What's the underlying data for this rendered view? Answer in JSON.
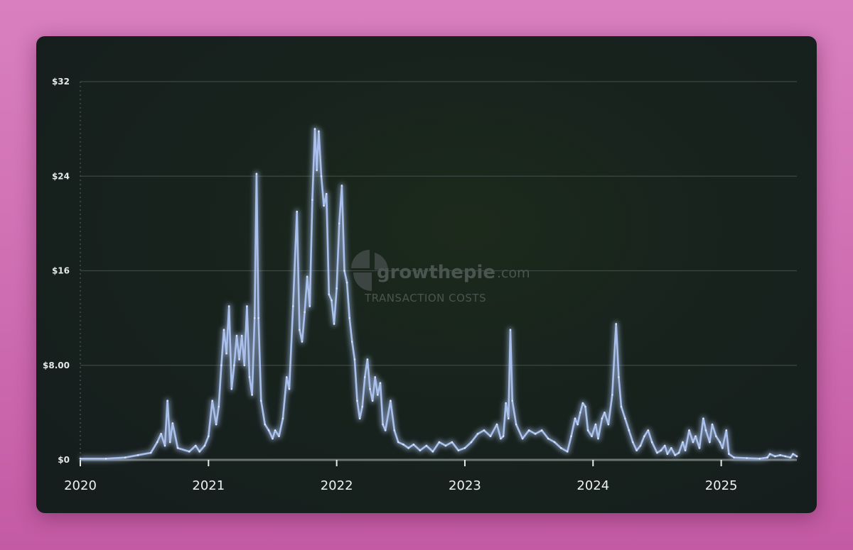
{
  "watermark": {
    "brand": "growthepie",
    "domain_suffix": ".com",
    "subtitle": "TRANSACTION COSTS"
  },
  "colors": {
    "line": "#a9c0ec",
    "grid": "#3e4643",
    "card_background": "#182220",
    "page_background": "#d27abb"
  },
  "chart_data": {
    "type": "line",
    "title": "",
    "xlabel": "",
    "ylabel": "",
    "ylim": [
      0,
      32
    ],
    "yticks": [
      {
        "value": 0,
        "label": "$0"
      },
      {
        "value": 8,
        "label": "$8.00"
      },
      {
        "value": 16,
        "label": "$16"
      },
      {
        "value": 24,
        "label": "$24"
      },
      {
        "value": 32,
        "label": "$32"
      }
    ],
    "xlim": [
      2020.0,
      2025.59
    ],
    "xticks": [
      {
        "value": 2020,
        "label": "2020"
      },
      {
        "value": 2021,
        "label": "2021"
      },
      {
        "value": 2022,
        "label": "2022"
      },
      {
        "value": 2023,
        "label": "2023"
      },
      {
        "value": 2024,
        "label": "2024"
      },
      {
        "value": 2025,
        "label": "2025"
      }
    ],
    "grid": true,
    "legend": "none",
    "series": [
      {
        "values": [
          [
            2020.0,
            0.1
          ],
          [
            2020.2,
            0.1
          ],
          [
            2020.35,
            0.2
          ],
          [
            2020.45,
            0.4
          ],
          [
            2020.55,
            0.6
          ],
          [
            2020.6,
            1.5
          ],
          [
            2020.63,
            2.2
          ],
          [
            2020.66,
            1.2
          ],
          [
            2020.68,
            5.0
          ],
          [
            2020.7,
            1.5
          ],
          [
            2020.72,
            3.1
          ],
          [
            2020.76,
            1.0
          ],
          [
            2020.85,
            0.7
          ],
          [
            2020.9,
            1.2
          ],
          [
            2020.93,
            0.7
          ],
          [
            2020.97,
            1.2
          ],
          [
            2021.0,
            2.0
          ],
          [
            2021.03,
            5.0
          ],
          [
            2021.06,
            3.0
          ],
          [
            2021.08,
            4.5
          ],
          [
            2021.1,
            8.0
          ],
          [
            2021.12,
            11.0
          ],
          [
            2021.14,
            9.0
          ],
          [
            2021.16,
            13.0
          ],
          [
            2021.18,
            6.0
          ],
          [
            2021.2,
            8.0
          ],
          [
            2021.22,
            10.5
          ],
          [
            2021.24,
            8.5
          ],
          [
            2021.26,
            10.5
          ],
          [
            2021.28,
            8.0
          ],
          [
            2021.3,
            13.0
          ],
          [
            2021.32,
            7.0
          ],
          [
            2021.34,
            5.5
          ],
          [
            2021.36,
            12.0
          ],
          [
            2021.375,
            24.2
          ],
          [
            2021.39,
            12.0
          ],
          [
            2021.41,
            5.0
          ],
          [
            2021.44,
            3.0
          ],
          [
            2021.47,
            2.5
          ],
          [
            2021.5,
            1.8
          ],
          [
            2021.52,
            2.5
          ],
          [
            2021.55,
            2.0
          ],
          [
            2021.58,
            3.5
          ],
          [
            2021.61,
            7.0
          ],
          [
            2021.63,
            6.0
          ],
          [
            2021.66,
            13.0
          ],
          [
            2021.69,
            21.0
          ],
          [
            2021.71,
            11.0
          ],
          [
            2021.73,
            10.0
          ],
          [
            2021.75,
            12.5
          ],
          [
            2021.77,
            15.5
          ],
          [
            2021.79,
            13.0
          ],
          [
            2021.81,
            22.0
          ],
          [
            2021.83,
            28.0
          ],
          [
            2021.845,
            24.5
          ],
          [
            2021.86,
            27.8
          ],
          [
            2021.88,
            24.0
          ],
          [
            2021.9,
            21.5
          ],
          [
            2021.92,
            22.5
          ],
          [
            2021.94,
            14.0
          ],
          [
            2021.96,
            13.5
          ],
          [
            2021.98,
            11.5
          ],
          [
            2022.0,
            14.5
          ],
          [
            2022.02,
            20.0
          ],
          [
            2022.04,
            23.2
          ],
          [
            2022.06,
            16.0
          ],
          [
            2022.08,
            15.0
          ],
          [
            2022.1,
            12.0
          ],
          [
            2022.12,
            10.0
          ],
          [
            2022.14,
            8.5
          ],
          [
            2022.16,
            5.0
          ],
          [
            2022.18,
            3.5
          ],
          [
            2022.2,
            4.5
          ],
          [
            2022.22,
            7.0
          ],
          [
            2022.24,
            8.5
          ],
          [
            2022.26,
            6.0
          ],
          [
            2022.28,
            5.0
          ],
          [
            2022.3,
            7.0
          ],
          [
            2022.32,
            5.5
          ],
          [
            2022.34,
            6.5
          ],
          [
            2022.36,
            3.0
          ],
          [
            2022.38,
            2.5
          ],
          [
            2022.42,
            5.0
          ],
          [
            2022.45,
            2.5
          ],
          [
            2022.48,
            1.5
          ],
          [
            2022.52,
            1.3
          ],
          [
            2022.56,
            1.0
          ],
          [
            2022.6,
            1.3
          ],
          [
            2022.65,
            0.8
          ],
          [
            2022.7,
            1.2
          ],
          [
            2022.75,
            0.7
          ],
          [
            2022.8,
            1.5
          ],
          [
            2022.85,
            1.2
          ],
          [
            2022.9,
            1.5
          ],
          [
            2022.95,
            0.8
          ],
          [
            2023.0,
            1.0
          ],
          [
            2023.05,
            1.5
          ],
          [
            2023.1,
            2.2
          ],
          [
            2023.15,
            2.5
          ],
          [
            2023.2,
            2.0
          ],
          [
            2023.25,
            3.0
          ],
          [
            2023.28,
            1.8
          ],
          [
            2023.3,
            2.0
          ],
          [
            2023.32,
            4.8
          ],
          [
            2023.34,
            3.5
          ],
          [
            2023.355,
            11.0
          ],
          [
            2023.37,
            5.0
          ],
          [
            2023.4,
            3.0
          ],
          [
            2023.45,
            1.8
          ],
          [
            2023.5,
            2.5
          ],
          [
            2023.55,
            2.2
          ],
          [
            2023.6,
            2.5
          ],
          [
            2023.65,
            1.8
          ],
          [
            2023.7,
            1.5
          ],
          [
            2023.75,
            1.0
          ],
          [
            2023.8,
            0.7
          ],
          [
            2023.83,
            2.0
          ],
          [
            2023.86,
            3.5
          ],
          [
            2023.88,
            3.0
          ],
          [
            2023.9,
            4.0
          ],
          [
            2023.92,
            4.8
          ],
          [
            2023.94,
            4.5
          ],
          [
            2023.96,
            2.5
          ],
          [
            2023.99,
            2.0
          ],
          [
            2024.02,
            3.0
          ],
          [
            2024.04,
            1.8
          ],
          [
            2024.07,
            3.5
          ],
          [
            2024.09,
            4.0
          ],
          [
            2024.12,
            3.0
          ],
          [
            2024.15,
            5.5
          ],
          [
            2024.18,
            11.5
          ],
          [
            2024.2,
            7.0
          ],
          [
            2024.22,
            4.5
          ],
          [
            2024.25,
            3.5
          ],
          [
            2024.28,
            2.5
          ],
          [
            2024.31,
            1.5
          ],
          [
            2024.34,
            0.8
          ],
          [
            2024.37,
            1.2
          ],
          [
            2024.4,
            2.0
          ],
          [
            2024.43,
            2.5
          ],
          [
            2024.46,
            1.5
          ],
          [
            2024.5,
            0.6
          ],
          [
            2024.53,
            0.8
          ],
          [
            2024.56,
            1.2
          ],
          [
            2024.58,
            0.5
          ],
          [
            2024.61,
            1.0
          ],
          [
            2024.64,
            0.4
          ],
          [
            2024.67,
            0.6
          ],
          [
            2024.7,
            1.5
          ],
          [
            2024.72,
            0.8
          ],
          [
            2024.75,
            2.5
          ],
          [
            2024.78,
            1.5
          ],
          [
            2024.8,
            2.0
          ],
          [
            2024.83,
            1.0
          ],
          [
            2024.86,
            3.5
          ],
          [
            2024.88,
            2.5
          ],
          [
            2024.91,
            1.5
          ],
          [
            2024.93,
            3.0
          ],
          [
            2024.96,
            2.0
          ],
          [
            2024.99,
            1.5
          ],
          [
            2025.01,
            1.0
          ],
          [
            2025.04,
            2.5
          ],
          [
            2025.06,
            0.5
          ],
          [
            2025.1,
            0.2
          ],
          [
            2025.2,
            0.15
          ],
          [
            2025.3,
            0.1
          ],
          [
            2025.36,
            0.2
          ],
          [
            2025.38,
            0.5
          ],
          [
            2025.42,
            0.3
          ],
          [
            2025.46,
            0.4
          ],
          [
            2025.5,
            0.3
          ],
          [
            2025.54,
            0.2
          ],
          [
            2025.56,
            0.5
          ],
          [
            2025.59,
            0.3
          ]
        ]
      }
    ]
  }
}
